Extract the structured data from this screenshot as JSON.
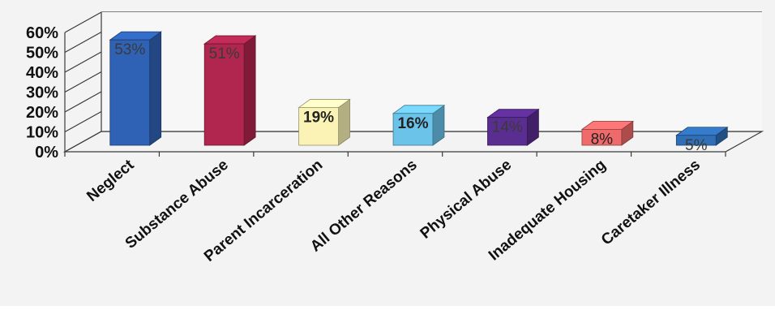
{
  "chart_data": {
    "type": "bar",
    "title": "",
    "xlabel": "",
    "ylabel": "",
    "ylim": [
      0,
      60
    ],
    "yticks": [
      "0%",
      "10%",
      "20%",
      "30%",
      "40%",
      "50%",
      "60%"
    ],
    "grid": true,
    "three_d": true,
    "categories": [
      "Neglect",
      "Substance Abuse",
      "Parent Incarceration",
      "All Other Reasons",
      "Physical Abuse",
      "Inadequate Housing",
      "Caretaker Illness"
    ],
    "values": [
      53,
      51,
      19,
      16,
      14,
      8,
      5
    ],
    "data_labels": [
      "53%",
      "51%",
      "19%",
      "16%",
      "14%",
      "8%",
      "5%"
    ],
    "colors": [
      "#2f62b4",
      "#b0264f",
      "#faf3b5",
      "#6bc3ea",
      "#5a2d91",
      "#ef6a6a",
      "#2f6fb7"
    ]
  }
}
